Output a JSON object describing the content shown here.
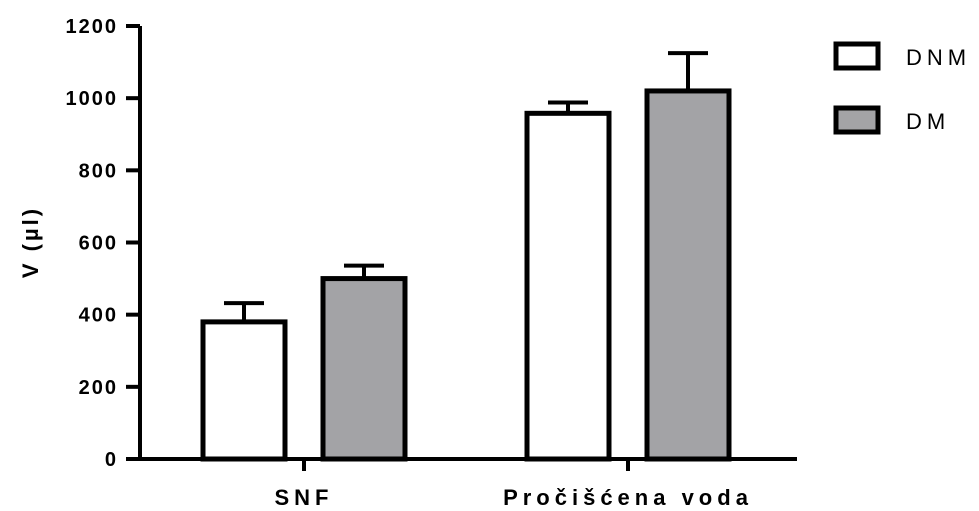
{
  "chart_data": {
    "type": "bar",
    "ylabel": "V (µl)",
    "categories": [
      "SNF",
      "Pročišćena voda"
    ],
    "series": [
      {
        "name": "DNM",
        "values": [
          380,
          958
        ],
        "error": [
          52,
          30
        ],
        "color": "#ffffff"
      },
      {
        "name": "DM",
        "values": [
          500,
          1020
        ],
        "error": [
          36,
          105
        ],
        "color": "#a3a3a6"
      }
    ],
    "ylim": [
      0,
      1200
    ],
    "yticks": [
      0,
      200,
      400,
      600,
      800,
      1000,
      1200
    ],
    "grid": false,
    "legend_position": "top-right"
  }
}
